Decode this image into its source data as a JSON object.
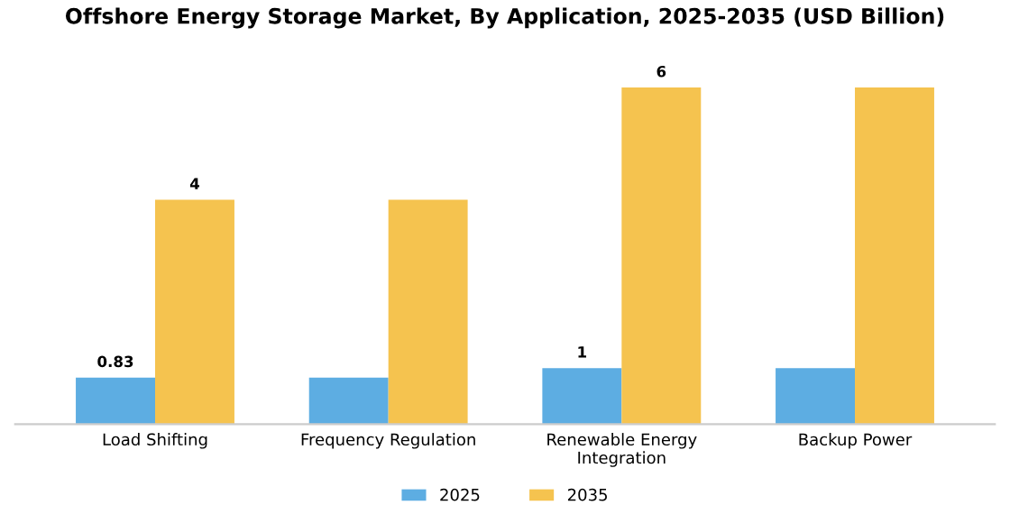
{
  "chart_data": {
    "type": "bar",
    "title": "Offshore Energy Storage Market, By Application, 2025-2035 (USD Billion)",
    "categories": [
      "Load Shifting",
      "Frequency Regulation",
      "Renewable Energy\nIntegration",
      "Backup Power"
    ],
    "series": [
      {
        "name": "2025",
        "color": "#5dade2",
        "values": [
          0.83,
          0.83,
          1,
          1
        ],
        "value_labels": [
          "0.83",
          null,
          "1",
          null
        ]
      },
      {
        "name": "2035",
        "color": "#f5c34f",
        "values": [
          4,
          4,
          6,
          6
        ],
        "value_labels": [
          "4",
          null,
          "6",
          null
        ]
      }
    ],
    "tick_labels": "x",
    "grid": false,
    "legend": "bottom"
  }
}
